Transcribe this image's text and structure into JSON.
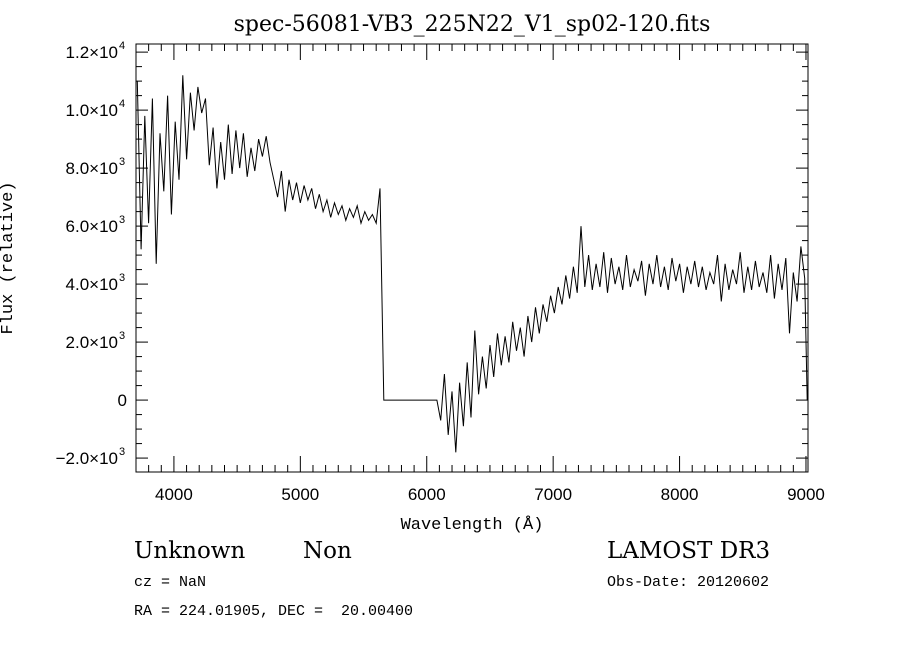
{
  "chart_data": {
    "type": "line",
    "title": "spec-56081-VB3_225N22_V1_sp02-120.fits",
    "xlabel": "Wavelength (Å)",
    "ylabel": "Flux (relative)",
    "xlim": [
      3700,
      9016
    ],
    "ylim": [
      -2480,
      12280
    ],
    "grid": false,
    "x_ticks": [
      4000,
      5000,
      6000,
      7000,
      8000,
      9000
    ],
    "x_tick_labels": [
      "4000",
      "5000",
      "6000",
      "7000",
      "8000",
      "9000"
    ],
    "x_minor_step": 100,
    "y_ticks": [
      -2000,
      0,
      2000,
      4000,
      6000,
      8000,
      10000,
      12000
    ],
    "y_tick_labels": [
      {
        "mant": "−2.0×10",
        "exp": "3"
      },
      {
        "mant": "0",
        "exp": ""
      },
      {
        "mant": "2.0×10",
        "exp": "3"
      },
      {
        "mant": "4.0×10",
        "exp": "3"
      },
      {
        "mant": "6.0×10",
        "exp": "3"
      },
      {
        "mant": "8.0×10",
        "exp": "3"
      },
      {
        "mant": "1.0×10",
        "exp": "4"
      },
      {
        "mant": "1.2×10",
        "exp": "4"
      }
    ],
    "y_minor_step": 500,
    "series": [
      {
        "name": "flux",
        "x_start": 3710,
        "x_step": 30,
        "values": [
          11000,
          5200,
          9800,
          6100,
          10400,
          4700,
          9200,
          7200,
          10500,
          6400,
          9600,
          7600,
          11200,
          8300,
          10600,
          9300,
          10800,
          9900,
          10400,
          8100,
          9400,
          7300,
          8900,
          7600,
          9500,
          7800,
          9300,
          8000,
          9200,
          7700,
          8700,
          7900,
          9000,
          8400,
          9100,
          8200,
          7600,
          7000,
          7900,
          6500,
          7600,
          6900,
          7500,
          6800,
          7400,
          6900,
          7300,
          6600,
          7100,
          6500,
          6900,
          6300,
          6800,
          6400,
          6700,
          6200,
          6600,
          6300,
          6700,
          6100,
          6500,
          6200,
          6400,
          6100,
          7300,
          0,
          0,
          0,
          0,
          0,
          0,
          0,
          0,
          0,
          0,
          0,
          0,
          0,
          0,
          0,
          -700,
          900,
          -1200,
          300,
          -1800,
          600,
          -900,
          1300,
          -600,
          2400,
          200,
          1500,
          400,
          1900,
          800,
          2300,
          1200,
          2200,
          1300,
          2700,
          1700,
          2500,
          1500,
          2900,
          2000,
          3200,
          2300,
          3300,
          2700,
          3600,
          3000,
          3900,
          3300,
          4300,
          3500,
          4600,
          3700,
          6000,
          3900,
          5000,
          3800,
          4700,
          3900,
          5100,
          3700,
          4900,
          4000,
          4600,
          3800,
          5000,
          3900,
          4500,
          4100,
          4800,
          3600,
          4700,
          4000,
          5000,
          3900,
          4600,
          3800,
          4900,
          4100,
          4700,
          3700,
          4600,
          4000,
          4800,
          3900,
          4600,
          3800,
          4400,
          4000,
          5000,
          3400,
          4700,
          3800,
          4500,
          4000,
          5100,
          3700,
          4600,
          3800,
          4800,
          3900,
          4400,
          3700,
          5000,
          3500,
          4700,
          3800,
          4900,
          2300,
          4400,
          3400,
          5300,
          4200,
          0
        ]
      }
    ]
  },
  "footer": {
    "object_class": "Unknown",
    "subclass": "Non",
    "survey": "LAMOST DR3",
    "cz": "cz = NaN",
    "obs_date": "Obs-Date: 20120602",
    "coords": "RA = 224.01905, DEC =  20.00400"
  }
}
